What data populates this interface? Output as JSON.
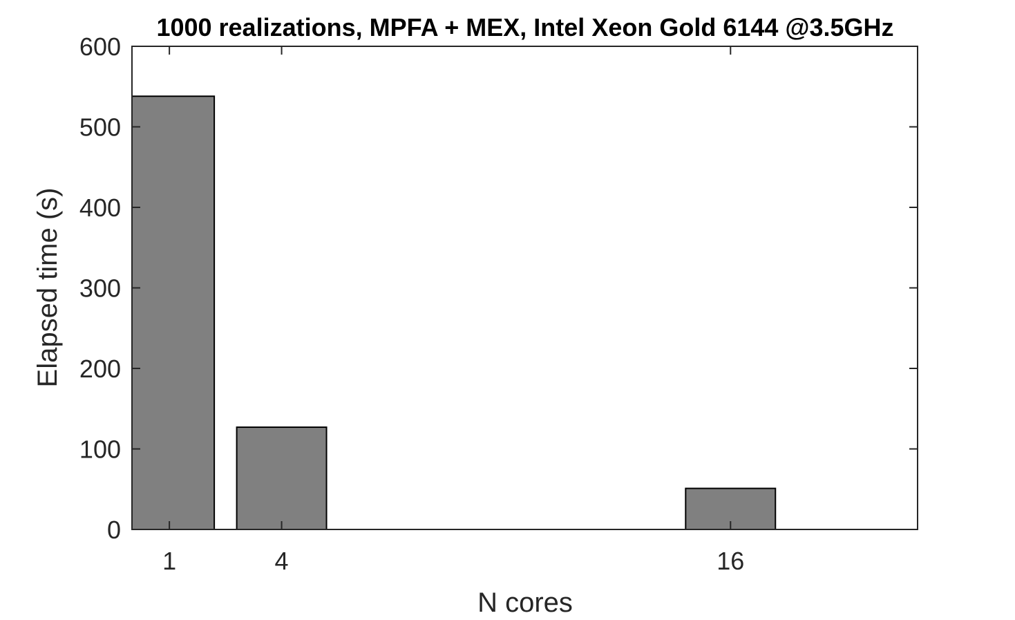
{
  "chart_data": {
    "type": "bar",
    "title": "1000 realizations, MPFA + MEX, Intel Xeon Gold 6144 @3.5GHz",
    "xlabel": "N cores",
    "ylabel": "Elapsed time (s)",
    "categories": [
      "1",
      "4",
      "16"
    ],
    "x": [
      1,
      4,
      16
    ],
    "values": [
      538,
      127,
      51
    ],
    "xlim": [
      0,
      21
    ],
    "ylim": [
      0,
      600
    ],
    "yticks": [
      0,
      100,
      200,
      300,
      400,
      500,
      600
    ],
    "xticks": [
      1,
      4,
      16
    ],
    "bar_width_units": 2.4,
    "colors": {
      "bar_fill": "#808080",
      "bar_edge": "#000000",
      "axis": "#262626"
    },
    "grid": false,
    "legend": "none"
  }
}
